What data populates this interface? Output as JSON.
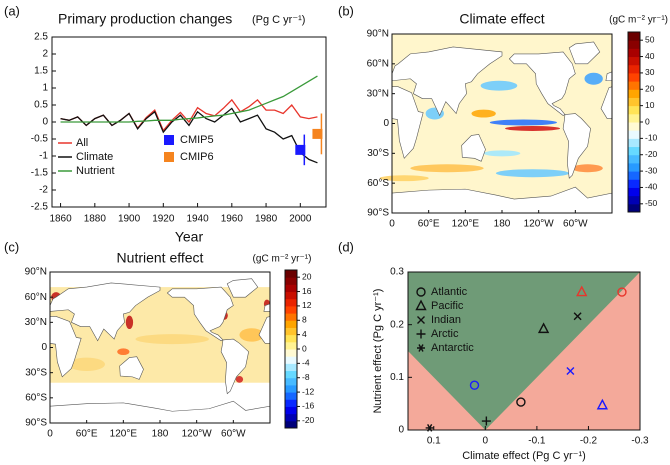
{
  "chart_data": [
    {
      "type": "line",
      "label": "(a)",
      "title": "Primary production changes",
      "units": "(Pg C yr⁻¹)",
      "xlabel": "Year",
      "x": [
        1860,
        1865,
        1870,
        1875,
        1880,
        1885,
        1890,
        1895,
        1900,
        1905,
        1910,
        1915,
        1920,
        1925,
        1930,
        1935,
        1940,
        1945,
        1950,
        1955,
        1960,
        1965,
        1970,
        1975,
        1980,
        1985,
        1990,
        1995,
        2000,
        2005,
        2010
      ],
      "series": [
        {
          "name": "All",
          "color": "#e8352c",
          "values": [
            0.1,
            0.05,
            0.15,
            -0.1,
            0.1,
            0.2,
            -0.1,
            0.05,
            0.25,
            -0.18,
            0.13,
            0.35,
            -0.25,
            0.05,
            0.28,
            0,
            0.42,
            0.25,
            0.18,
            0.4,
            0.65,
            0.3,
            0.45,
            0.65,
            0.35,
            0.35,
            0.25,
            0.5,
            0.15,
            0.1,
            0.15
          ]
        },
        {
          "name": "Climate",
          "color": "#111111",
          "values": [
            0.1,
            0.05,
            0.15,
            -0.1,
            0.1,
            0.2,
            -0.1,
            0.05,
            0.25,
            -0.2,
            0.1,
            0.3,
            -0.3,
            0,
            0.2,
            -0.1,
            0.3,
            0.1,
            0,
            0.2,
            0.4,
            0,
            0.1,
            0.2,
            -0.2,
            -0.3,
            -0.5,
            -0.4,
            -0.9,
            -1.1,
            -1.2
          ]
        },
        {
          "name": "Nutrient",
          "color": "#3a9a3a",
          "values": [
            0,
            0,
            0,
            0,
            0,
            0,
            0,
            0,
            0,
            0.02,
            0.03,
            0.05,
            0.05,
            0.05,
            0.08,
            0.1,
            0.12,
            0.15,
            0.18,
            0.2,
            0.25,
            0.3,
            0.35,
            0.45,
            0.55,
            0.65,
            0.75,
            0.9,
            1.05,
            1.2,
            1.35
          ]
        }
      ],
      "markers": [
        {
          "name": "CMIP5",
          "color": "#1a1aff",
          "x": 2000,
          "value": -0.82,
          "error": 0.45
        },
        {
          "name": "CMIP6",
          "color": "#f5841f",
          "x": 2010,
          "value": -0.35,
          "error": 0.6
        }
      ],
      "xlim": [
        1855,
        2015
      ],
      "xticks": [
        1860,
        1880,
        1900,
        1920,
        1940,
        1960,
        1980,
        2000
      ],
      "ylim": [
        -2.5,
        2.5
      ],
      "yticks": [
        2.5,
        2,
        1.5,
        1,
        0.5,
        0,
        -0.5,
        -1,
        -1.5,
        -2,
        -2.5
      ]
    },
    {
      "type": "map",
      "label": "(b)",
      "title": "Climate effect",
      "colorbar_title": "(gC m⁻² yr⁻¹)",
      "lon_labels": [
        "0",
        "60°E",
        "120°E",
        "180",
        "120°W",
        "60°W"
      ],
      "lat_labels": [
        "90°N",
        "60°N",
        "30°N",
        "0",
        "30°S",
        "60°S",
        "90°S"
      ],
      "clim": [
        -55,
        55
      ],
      "colorbar_ticks": [
        50,
        40,
        30,
        20,
        10,
        0,
        -10,
        -20,
        -30,
        -40,
        -50
      ],
      "colormap": [
        "#00007a",
        "#0000ff",
        "#1e90ff",
        "#66d9ff",
        "#ffffff",
        "#ffee66",
        "#ffa500",
        "#ff3300",
        "#b30000",
        "#6a0000"
      ]
    },
    {
      "type": "map",
      "label": "(c)",
      "title": "Nutrient effect",
      "colorbar_title": "(gC m⁻² yr⁻¹)",
      "lon_labels": [
        "0",
        "60°E",
        "120°E",
        "180",
        "120°W",
        "60°W"
      ],
      "lat_labels": [
        "90°N",
        "60°N",
        "30°N",
        "0",
        "30°S",
        "60°S",
        "90°S"
      ],
      "clim": [
        -22,
        22
      ],
      "colorbar_ticks": [
        20,
        16,
        12,
        8,
        4,
        0,
        -4,
        -8,
        -12,
        -16,
        -20
      ],
      "colormap": [
        "#00007a",
        "#0000ff",
        "#1e90ff",
        "#66d9ff",
        "#ffffff",
        "#ffee66",
        "#ffa500",
        "#ff3300",
        "#b30000",
        "#6a0000"
      ]
    },
    {
      "type": "scatter",
      "label": "(d)",
      "xlabel": "Climate effect (Pg C yr⁻¹)",
      "ylabel": "Nutrient effect (Pg C yr⁻¹)",
      "xlim": [
        0.15,
        -0.3
      ],
      "xticks": [
        0.1,
        0,
        -0.1,
        -0.2,
        -0.3
      ],
      "ylim": [
        0,
        0.3
      ],
      "yticks": [
        0,
        0.1,
        0.2,
        0.3
      ],
      "series": [
        {
          "name": "Atlantic",
          "marker": "circle",
          "x": [
            0.021,
            -0.069,
            -0.265
          ],
          "values": [
            0.085,
            0.053,
            0.262
          ],
          "colors": [
            "#1a1aff",
            "#111111",
            "#e8352c"
          ]
        },
        {
          "name": "Pacific",
          "marker": "triangle",
          "x": [
            -0.113,
            -0.187,
            -0.227
          ],
          "values": [
            0.192,
            0.262,
            0.047
          ],
          "colors": [
            "#111111",
            "#e8352c",
            "#1a1aff"
          ]
        },
        {
          "name": "Indian",
          "marker": "cross",
          "x": [
            -0.179,
            -0.165
          ],
          "values": [
            0.216,
            0.112
          ],
          "colors": [
            "#111111",
            "#1a1aff"
          ]
        },
        {
          "name": "Arctic",
          "marker": "plus",
          "x": [
            -0.002
          ],
          "values": [
            0.017
          ],
          "colors": [
            "#111111"
          ]
        },
        {
          "name": "Antarctic",
          "marker": "star",
          "x": [
            0.108
          ],
          "values": [
            0.004
          ],
          "colors": [
            "#111111"
          ]
        }
      ]
    }
  ]
}
